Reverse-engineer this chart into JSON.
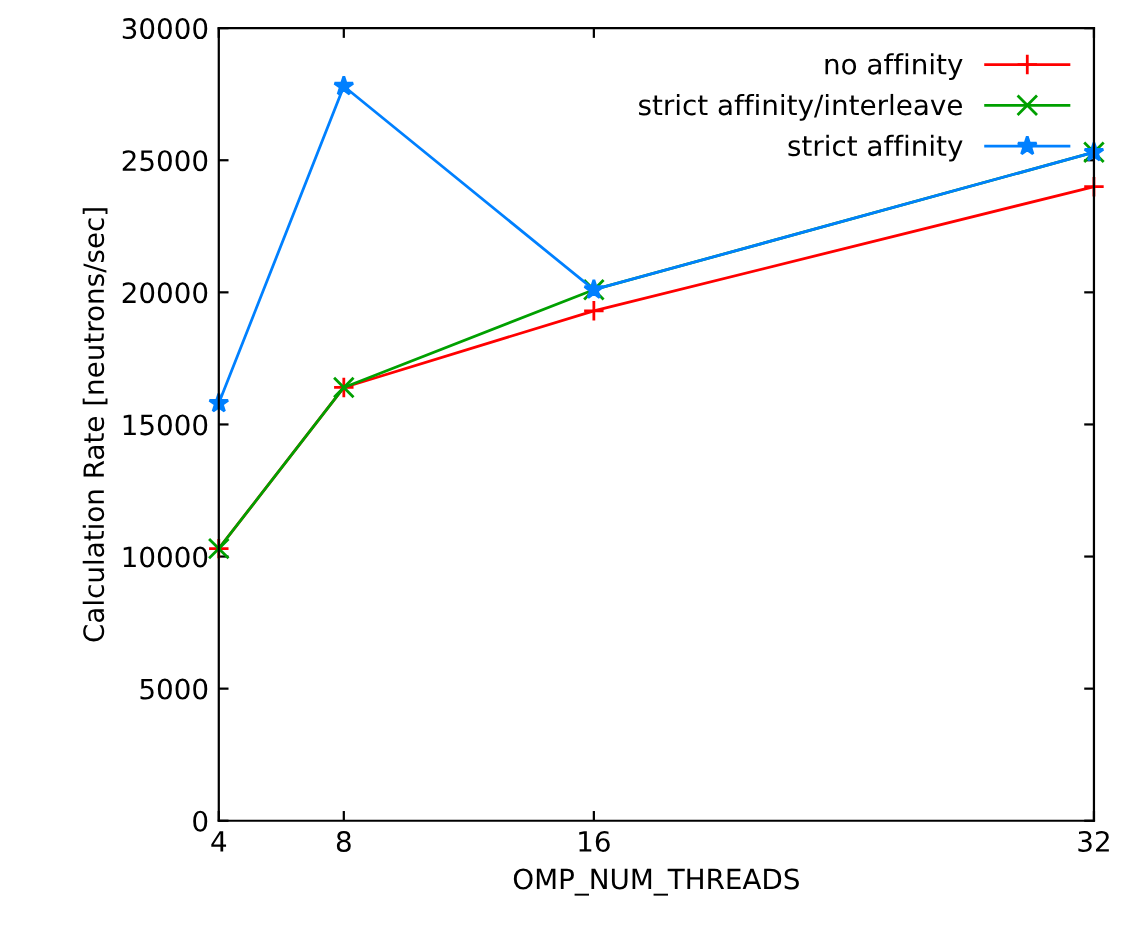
{
  "chart_data": {
    "type": "line",
    "xlabel": "OMP_NUM_THREADS",
    "ylabel": "Calculation Rate [neutrons/sec]",
    "x": [
      4,
      8,
      16,
      32
    ],
    "series": [
      {
        "name": "no affinity",
        "color": "#ff0000",
        "marker": "plus",
        "values": [
          10300,
          16400,
          19300,
          24000
        ]
      },
      {
        "name": "strict affinity/interleave",
        "color": "#00a000",
        "marker": "cross",
        "values": [
          10300,
          16400,
          20100,
          25300
        ]
      },
      {
        "name": "strict affinity",
        "color": "#0080ff",
        "marker": "star",
        "values": [
          15800,
          27800,
          20100,
          25300
        ]
      }
    ],
    "xlim": [
      4,
      32
    ],
    "xticks": [
      4,
      8,
      16,
      32
    ],
    "ylim": [
      0,
      30000
    ],
    "yticks": [
      0,
      5000,
      10000,
      15000,
      20000,
      25000,
      30000
    ],
    "grid": false,
    "legend": "top right",
    "line_style": "solid"
  }
}
